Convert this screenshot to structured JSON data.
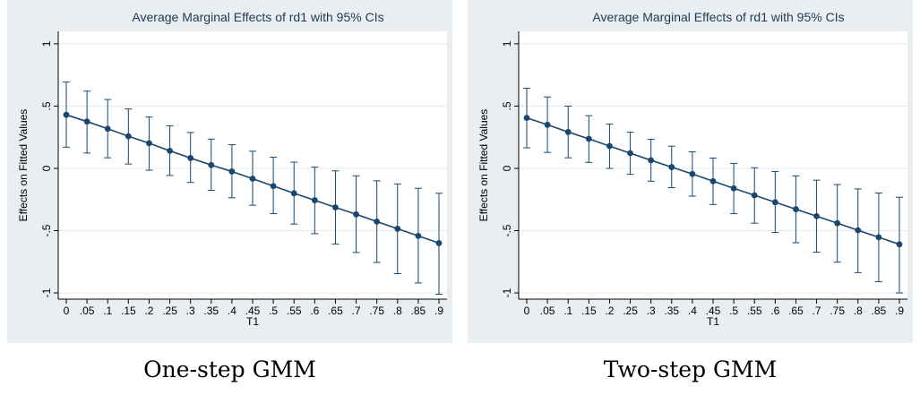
{
  "colors": {
    "panel_bg": "#e8eef2",
    "plot_bg": "#ffffff",
    "title": "#1f3a55",
    "series": "#1a476f",
    "grid": "#e4ecf1",
    "axis": "#000000"
  },
  "captions": [
    "One-step GMM",
    "Two-step GMM"
  ],
  "chart_data": [
    {
      "type": "line",
      "title": "Average Marginal Effects of rd1 with 95% CIs",
      "xlabel": "T1",
      "ylabel": "Effects on Fitted Values",
      "x": [
        0,
        0.05,
        0.1,
        0.15,
        0.2,
        0.25,
        0.3,
        0.35,
        0.4,
        0.45,
        0.5,
        0.55,
        0.6,
        0.65,
        0.7,
        0.75,
        0.8,
        0.85,
        0.9
      ],
      "xtick_labels": [
        "0",
        ".05",
        ".1",
        ".15",
        ".2",
        ".25",
        ".3",
        ".35",
        ".4",
        ".45",
        ".5",
        ".55",
        ".6",
        ".65",
        ".7",
        ".75",
        ".8",
        ".85",
        ".9"
      ],
      "yticks": [
        -1,
        -0.5,
        0,
        0.5,
        1
      ],
      "ytick_labels": [
        "-1",
        "-.5",
        "0",
        ".5",
        "1"
      ],
      "ylim": [
        -1.05,
        1.1
      ],
      "grid": true,
      "series": [
        {
          "values": [
            0.43,
            0.376,
            0.318,
            0.258,
            0.202,
            0.141,
            0.083,
            0.027,
            -0.025,
            -0.083,
            -0.142,
            -0.2,
            -0.256,
            -0.313,
            -0.369,
            -0.427,
            -0.485,
            -0.542,
            -0.6
          ],
          "ci_low": [
            0.17,
            0.123,
            0.085,
            0.035,
            -0.015,
            -0.057,
            -0.113,
            -0.176,
            -0.236,
            -0.296,
            -0.363,
            -0.447,
            -0.524,
            -0.607,
            -0.675,
            -0.755,
            -0.845,
            -0.92,
            -1.01
          ],
          "ci_high": [
            0.693,
            0.62,
            0.553,
            0.477,
            0.412,
            0.342,
            0.288,
            0.235,
            0.19,
            0.138,
            0.09,
            0.05,
            0.01,
            -0.02,
            -0.06,
            -0.1,
            -0.125,
            -0.16,
            -0.2
          ]
        }
      ]
    },
    {
      "type": "line",
      "title": "Average Marginal Effects of rd1 with 95% CIs",
      "xlabel": "T1",
      "ylabel": "Effects on Fitted Values",
      "x": [
        0,
        0.05,
        0.1,
        0.15,
        0.2,
        0.25,
        0.3,
        0.35,
        0.4,
        0.45,
        0.5,
        0.55,
        0.6,
        0.65,
        0.7,
        0.75,
        0.8,
        0.85,
        0.9
      ],
      "xtick_labels": [
        "0",
        ".05",
        ".1",
        ".15",
        ".2",
        ".25",
        ".3",
        ".35",
        ".4",
        ".45",
        ".5",
        ".55",
        ".6",
        ".65",
        ".7",
        ".75",
        ".8",
        ".85",
        ".9"
      ],
      "yticks": [
        -1,
        -0.5,
        0,
        0.5,
        1
      ],
      "ytick_labels": [
        "-1",
        "-.5",
        "0",
        ".5",
        "1"
      ],
      "ylim": [
        -1.05,
        1.1
      ],
      "grid": true,
      "series": [
        {
          "values": [
            0.405,
            0.35,
            0.292,
            0.237,
            0.179,
            0.122,
            0.065,
            0.01,
            -0.045,
            -0.103,
            -0.16,
            -0.216,
            -0.272,
            -0.328,
            -0.384,
            -0.44,
            -0.497,
            -0.553,
            -0.61
          ],
          "ci_low": [
            0.165,
            0.128,
            0.085,
            0.048,
            0.0,
            -0.048,
            -0.103,
            -0.155,
            -0.223,
            -0.29,
            -0.363,
            -0.44,
            -0.515,
            -0.597,
            -0.673,
            -0.753,
            -0.837,
            -0.91,
            -1.0
          ],
          "ci_high": [
            0.643,
            0.573,
            0.5,
            0.423,
            0.355,
            0.29,
            0.233,
            0.178,
            0.133,
            0.083,
            0.04,
            0.005,
            -0.025,
            -0.06,
            -0.095,
            -0.13,
            -0.165,
            -0.198,
            -0.232
          ]
        }
      ]
    }
  ]
}
